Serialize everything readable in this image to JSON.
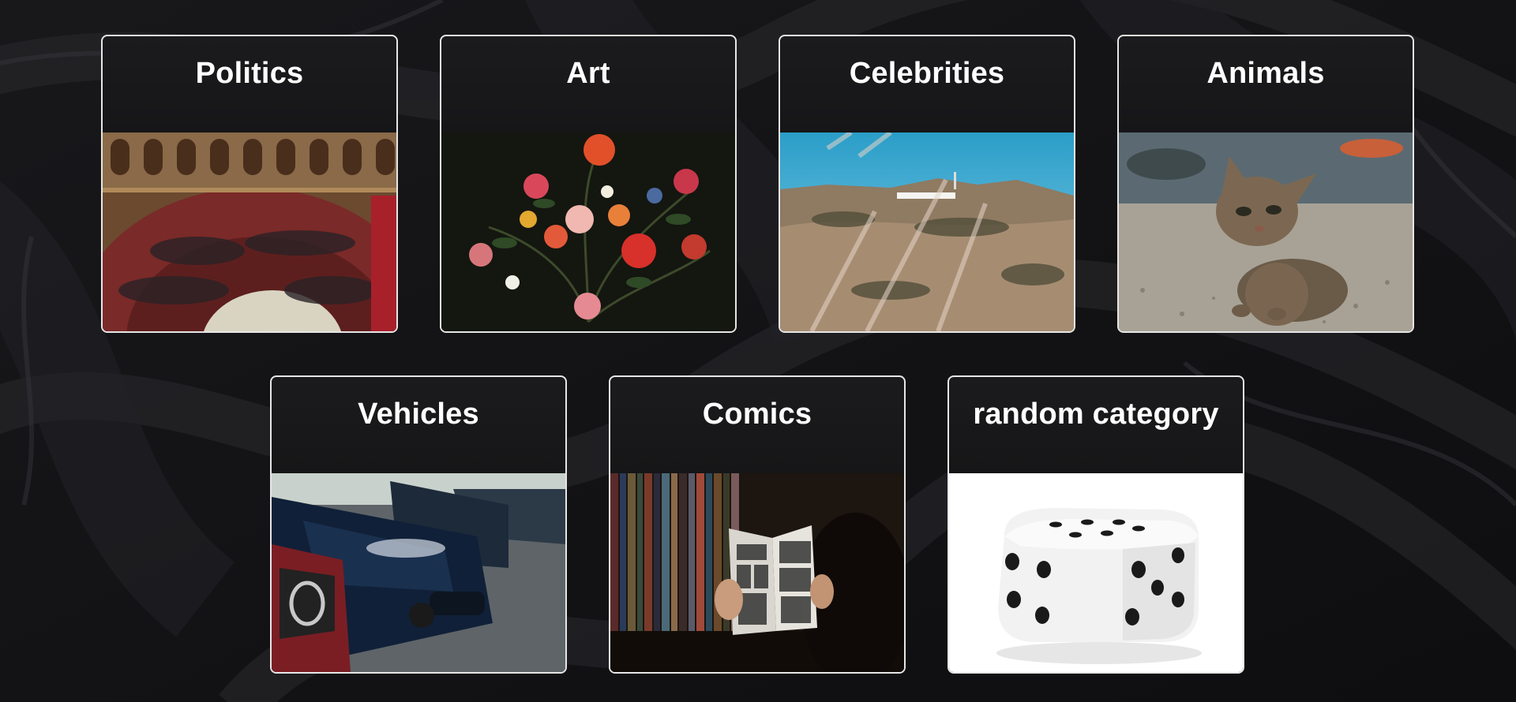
{
  "categories": [
    {
      "label": "Politics",
      "image": "parliament-chamber-image"
    },
    {
      "label": "Art",
      "image": "flower-still-life-painting"
    },
    {
      "label": "Celebrities",
      "image": "hollywood-sign-hills"
    },
    {
      "label": "Animals",
      "image": "tabby-kitten-photo"
    },
    {
      "label": "Vehicles",
      "image": "parked-cars-row"
    },
    {
      "label": "Comics",
      "image": "person-reading-comic-book"
    },
    {
      "label": "random category",
      "image": "white-dice"
    }
  ],
  "colors": {
    "background": "#131315",
    "card_border": "#e6e6e6",
    "title_text": "#ffffff"
  }
}
